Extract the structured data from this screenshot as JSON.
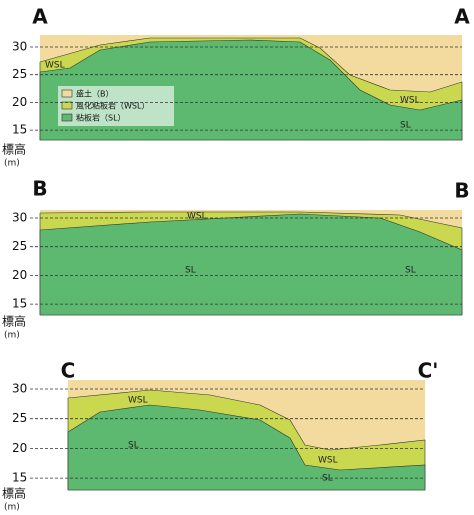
{
  "sections": [
    {
      "label_left": "A",
      "label_right": "A",
      "yticks": [
        30,
        25,
        20,
        15
      ],
      "axis_label": "標高",
      "axis_unit": "(m)",
      "layer_labels": [
        "WSL",
        "WSL",
        "SL"
      ]
    },
    {
      "label_left": "B",
      "label_right": "B",
      "yticks": [
        30,
        25,
        20,
        15
      ],
      "axis_label": "標高",
      "axis_unit": "(m)",
      "layer_labels": [
        "WSL",
        "SL",
        "SL"
      ]
    },
    {
      "label_left": "C",
      "label_right": "C'",
      "yticks": [
        30,
        25,
        20,
        15
      ],
      "axis_label": "標高",
      "axis_unit": "(m)",
      "layer_labels": [
        "WSL",
        "SL",
        "WSL",
        "SL"
      ]
    }
  ],
  "legend": [
    {
      "label": "盛土（B）"
    },
    {
      "label": "風化粘板岩（WSL）"
    },
    {
      "label": "粘板岩（SL）"
    }
  ]
}
